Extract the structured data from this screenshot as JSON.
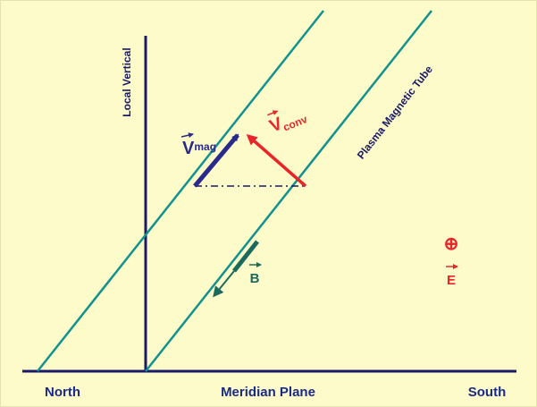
{
  "labels": {
    "local_vertical": "Local Vertical",
    "tube": "Plasma Magnetic Tube",
    "v_mag": "V",
    "v_mag_sub": "mag",
    "v_conv": "V",
    "v_conv_sub": "conv",
    "b": "B",
    "earth": "⊕",
    "e": "E",
    "north": "North",
    "meridian": "Meridian Plane",
    "south": "South"
  }
}
